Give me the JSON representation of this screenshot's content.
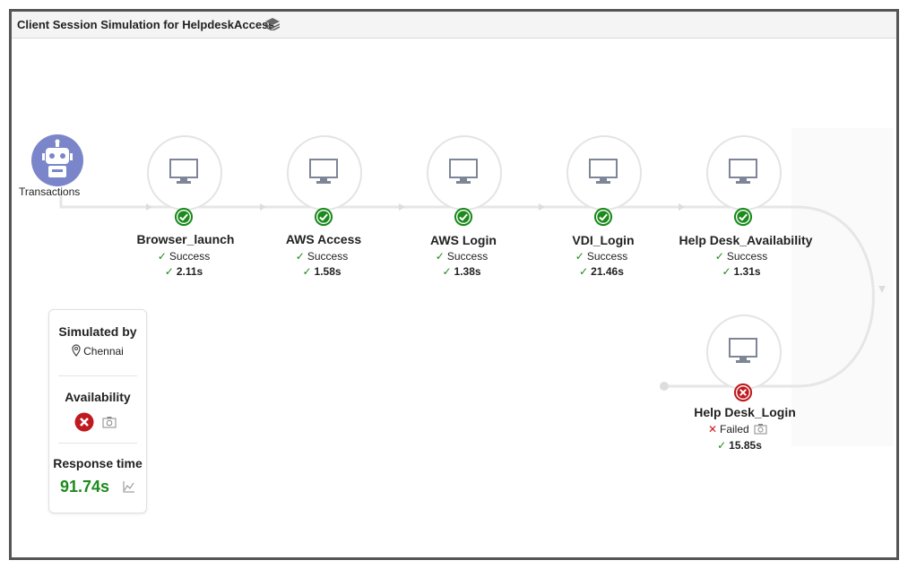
{
  "window": {
    "title": "Client Session Simulation for HelpdeskAccess"
  },
  "transactions": {
    "label": "Transactions"
  },
  "steps": [
    {
      "name": "Browser_launch",
      "status": "Success",
      "time": "2.11s"
    },
    {
      "name": "AWS Access",
      "status": "Success",
      "time": "1.58s"
    },
    {
      "name": "AWS Login",
      "status": "Success",
      "time": "1.38s"
    },
    {
      "name": "VDI_Login",
      "status": "Success",
      "time": "21.46s"
    },
    {
      "name": "Help Desk_Availability",
      "status": "Success",
      "time": "1.31s"
    },
    {
      "name": "Help Desk_Login",
      "status": "Failed",
      "time": "15.85s"
    }
  ],
  "panel": {
    "simulated_by_label": "Simulated by",
    "location": "Chennai",
    "availability_label": "Availability",
    "response_time_label": "Response time",
    "response_time_value": "91.74s"
  },
  "colors": {
    "success": "#1c8a1c",
    "failed": "#d0191d",
    "robot": "#7a86c9"
  },
  "icons": [
    "layers-icon",
    "robot-icon",
    "monitor-icon",
    "check-circle-icon",
    "x-circle-icon",
    "camera-icon",
    "location-pin-icon",
    "line-chart-icon"
  ]
}
